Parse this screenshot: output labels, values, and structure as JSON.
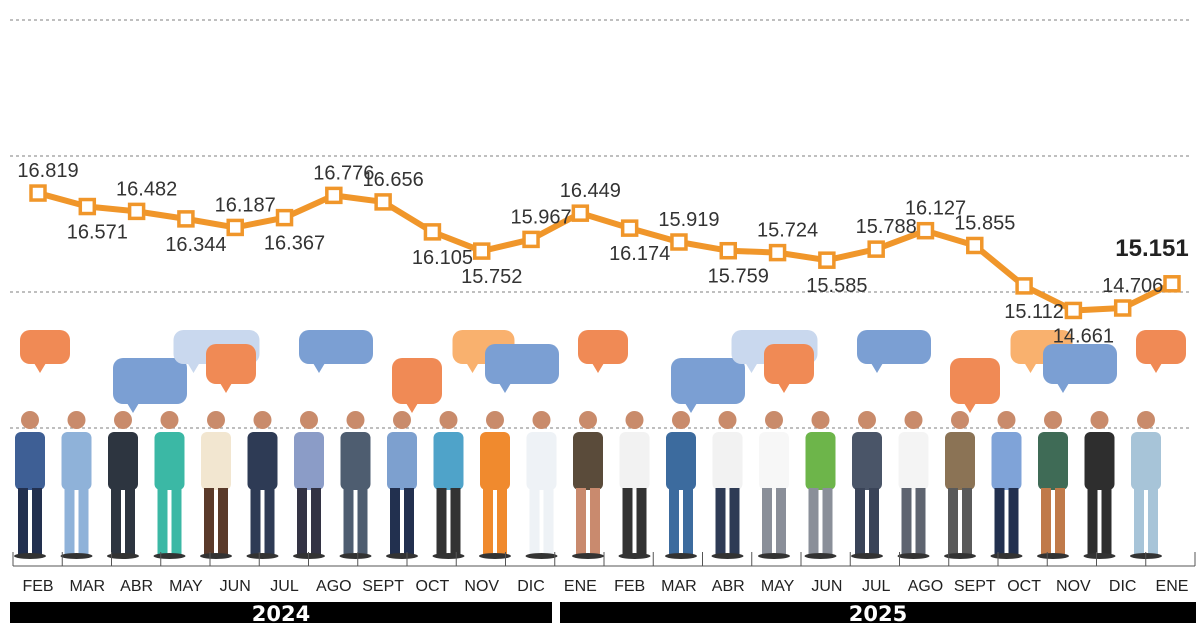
{
  "chart_data": {
    "type": "line",
    "title": "",
    "xlabel": "",
    "ylabel": "",
    "categories": [
      "FEB",
      "MAR",
      "ABR",
      "MAY",
      "JUN",
      "JUL",
      "AGO",
      "SEPT",
      "OCT",
      "NOV",
      "DIC",
      "ENE",
      "FEB",
      "MAR",
      "ABR",
      "MAY",
      "JUN",
      "JUL",
      "AGO",
      "SEPT",
      "OCT",
      "NOV",
      "DIC",
      "ENE"
    ],
    "year_groups": [
      {
        "label": "2024",
        "months": 11
      },
      {
        "label": "2025",
        "months": 13
      }
    ],
    "values": [
      16.819,
      16.571,
      16.482,
      16.344,
      16.187,
      16.367,
      16.776,
      16.656,
      16.105,
      15.752,
      15.967,
      16.449,
      16.174,
      15.919,
      15.759,
      15.724,
      15.585,
      15.788,
      16.127,
      15.855,
      15.112,
      14.661,
      14.706,
      15.151
    ],
    "value_labels": [
      "16.819",
      "16.571",
      "16.482",
      "16.344",
      "16.187",
      "16.367",
      "16.776",
      "16.656",
      "16.105",
      "15.752",
      "15.967",
      "16.449",
      "16.174",
      "15.919",
      "15.759",
      "15.724",
      "15.585",
      "15.788",
      "16.127",
      "15.855",
      "15.112",
      "14.661",
      "14.706",
      "15.151"
    ],
    "highlight_last": true,
    "ylim": [
      12.5,
      20
    ],
    "gridlines": [
      20,
      17.5,
      15,
      12.5
    ],
    "grid": true,
    "axis_labels_shown": false,
    "colors": {
      "line": "#F0962A",
      "marker_fill": "#FFFFFF",
      "grid": "#999999",
      "year_bar": "#000000"
    },
    "bubble_colors": [
      "#F08A55",
      "#F9B16E",
      "#7B9FD3",
      "#C9D8EE"
    ]
  }
}
